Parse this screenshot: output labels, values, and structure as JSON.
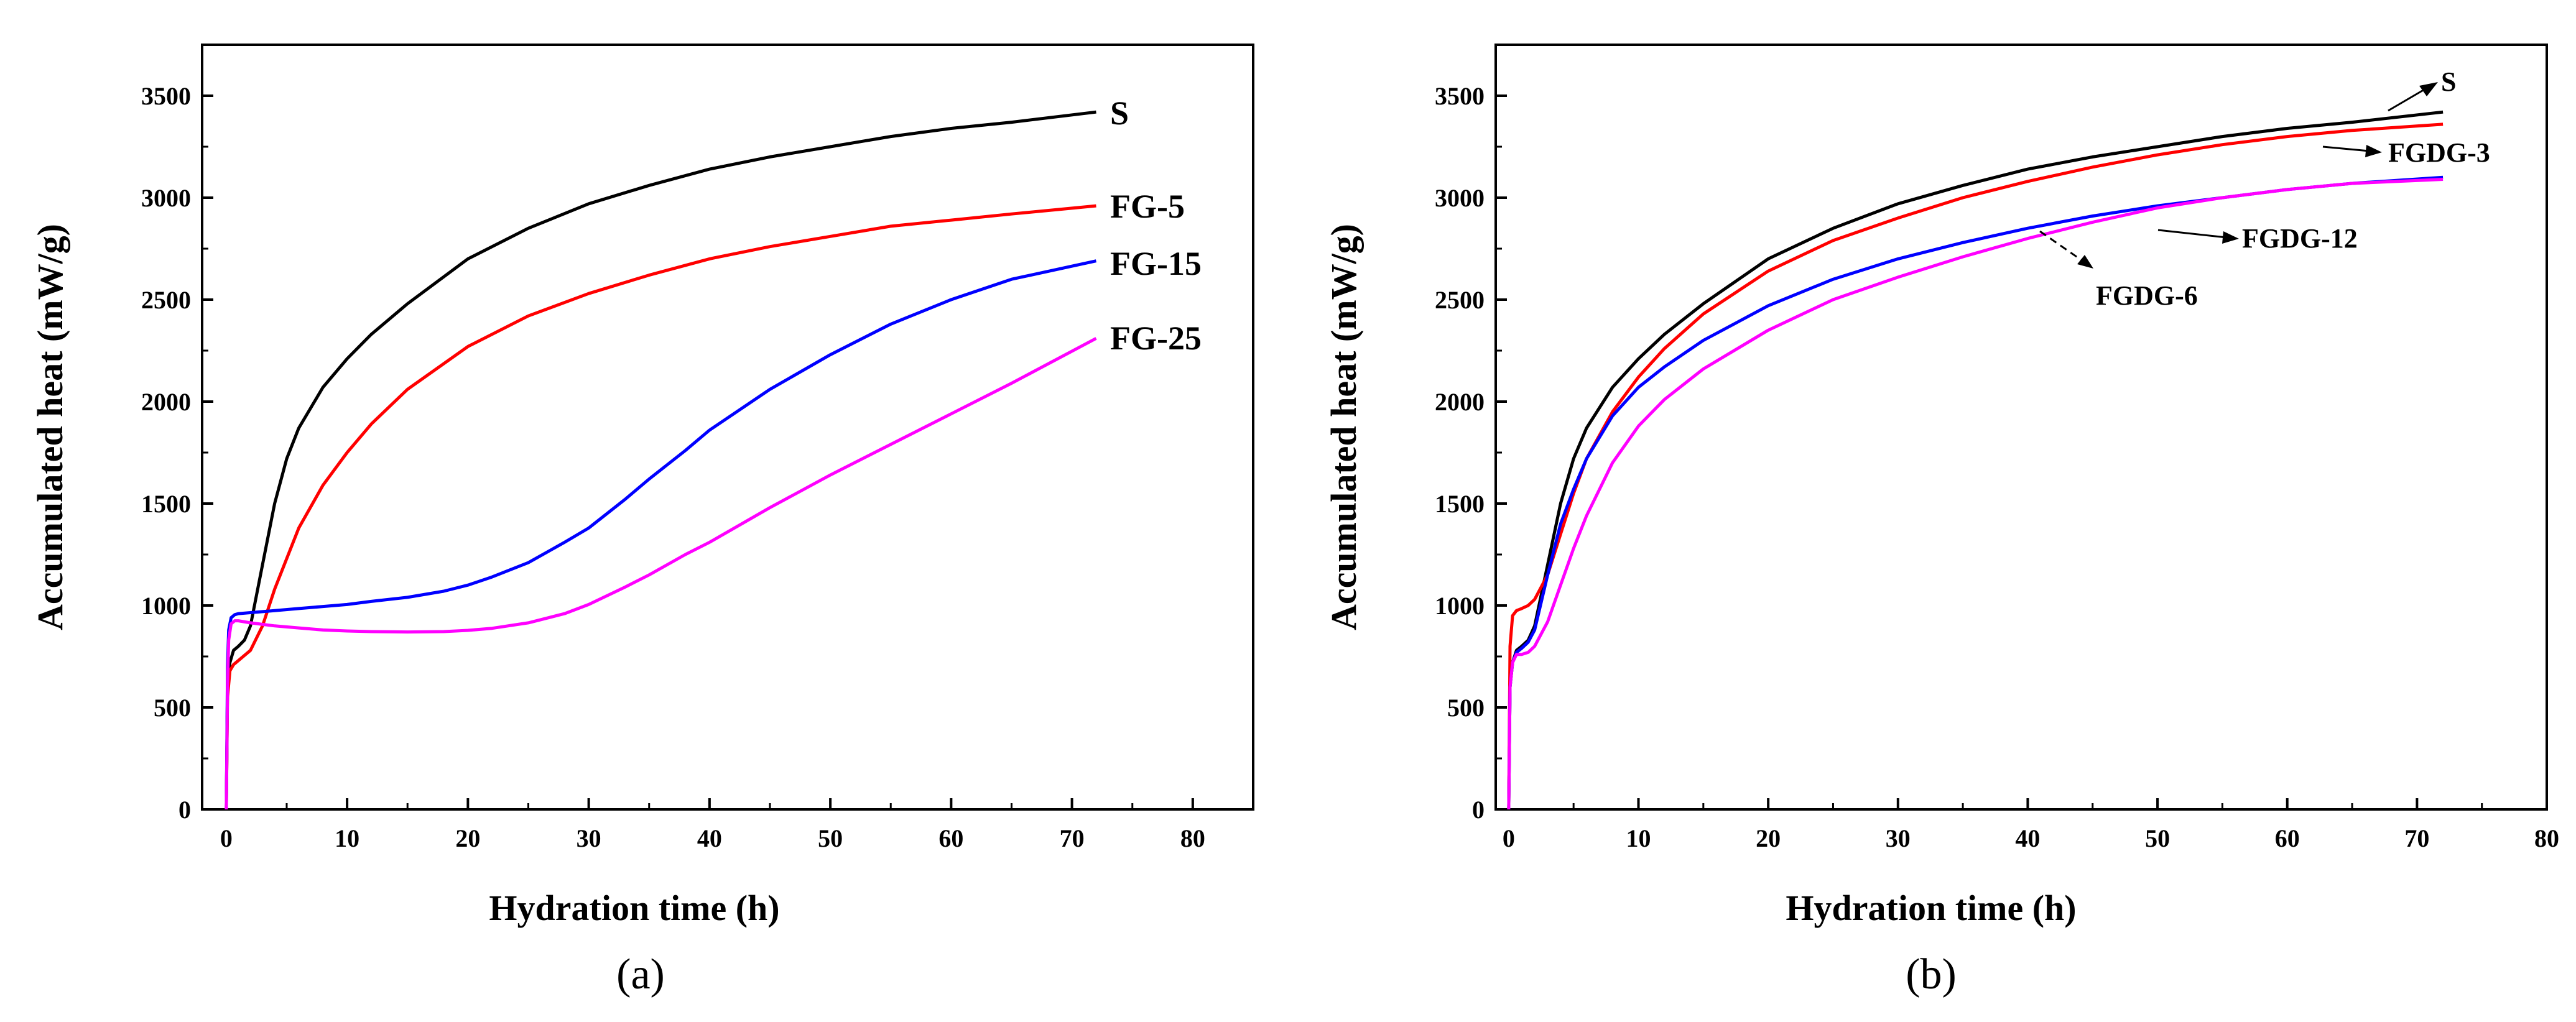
{
  "chart_data": [
    {
      "type": "line",
      "panel_label": "(a)",
      "xlabel": "Hydration time (h)",
      "ylabel": "Accumulated heat (mW/g)",
      "xlim": [
        -2,
        85
      ],
      "ylim": [
        0,
        3750
      ],
      "xticks": [
        "0",
        "10",
        "20",
        "30",
        "40",
        "50",
        "60",
        "70",
        "80"
      ],
      "yticks": [
        "0",
        "500",
        "1000",
        "1500",
        "2000",
        "2500",
        "3000",
        "3500"
      ],
      "series": [
        {
          "name": "S",
          "color": "#000000",
          "x": [
            0,
            0.1,
            0.3,
            0.6,
            1,
            1.5,
            2,
            3,
            4,
            5,
            6,
            8,
            10,
            12,
            15,
            20,
            25,
            30,
            35,
            40,
            45,
            50,
            55,
            60,
            65,
            72
          ],
          "y": [
            0,
            600,
            720,
            780,
            800,
            830,
            900,
            1200,
            1500,
            1720,
            1870,
            2070,
            2210,
            2330,
            2480,
            2700,
            2850,
            2970,
            3060,
            3140,
            3200,
            3250,
            3300,
            3340,
            3370,
            3420
          ]
        },
        {
          "name": "FG-5",
          "color": "#ff0000",
          "x": [
            0,
            0.1,
            0.3,
            0.6,
            1,
            2,
            3,
            4,
            5,
            6,
            8,
            10,
            12,
            15,
            20,
            25,
            30,
            35,
            40,
            45,
            50,
            55,
            60,
            65,
            72
          ],
          "y": [
            0,
            550,
            680,
            710,
            730,
            780,
            900,
            1080,
            1230,
            1380,
            1590,
            1750,
            1890,
            2060,
            2270,
            2420,
            2530,
            2620,
            2700,
            2760,
            2810,
            2860,
            2890,
            2920,
            2960
          ]
        },
        {
          "name": "FG-15",
          "color": "#0000ff",
          "x": [
            0,
            0.1,
            0.2,
            0.4,
            0.7,
            1,
            2,
            4,
            6,
            8,
            10,
            12,
            15,
            18,
            20,
            22,
            25,
            28,
            30,
            33,
            35,
            38,
            40,
            45,
            50,
            55,
            60,
            65,
            72
          ],
          "y": [
            0,
            700,
            880,
            940,
            955,
            960,
            965,
            975,
            985,
            995,
            1005,
            1020,
            1040,
            1070,
            1100,
            1140,
            1210,
            1310,
            1380,
            1520,
            1620,
            1760,
            1860,
            2060,
            2230,
            2380,
            2500,
            2600,
            2690
          ]
        },
        {
          "name": "FG-25",
          "color": "#ff00ff",
          "x": [
            0,
            0.1,
            0.2,
            0.4,
            0.7,
            1,
            2,
            4,
            6,
            8,
            10,
            12,
            15,
            18,
            20,
            22,
            25,
            28,
            30,
            33,
            35,
            38,
            40,
            45,
            50,
            55,
            60,
            65,
            72
          ],
          "y": [
            0,
            600,
            830,
            910,
            925,
            925,
            915,
            900,
            890,
            880,
            875,
            872,
            870,
            872,
            878,
            888,
            915,
            960,
            1005,
            1090,
            1150,
            1250,
            1310,
            1480,
            1640,
            1790,
            1940,
            2090,
            2310
          ]
        }
      ]
    },
    {
      "type": "line",
      "panel_label": "(b)",
      "xlabel": "Hydration time (h)",
      "ylabel": "Accumulated heat (mW/g)",
      "xlim": [
        -1,
        80
      ],
      "ylim": [
        0,
        3750
      ],
      "xticks": [
        "0",
        "10",
        "20",
        "30",
        "40",
        "50",
        "60",
        "70",
        "80"
      ],
      "yticks": [
        "0",
        "500",
        "1000",
        "1500",
        "2000",
        "2500",
        "3000",
        "3500"
      ],
      "series": [
        {
          "name": "S",
          "color": "#000000",
          "x": [
            0,
            0.1,
            0.3,
            0.6,
            1,
            1.5,
            2,
            3,
            4,
            5,
            6,
            8,
            10,
            12,
            15,
            20,
            25,
            30,
            35,
            40,
            45,
            50,
            55,
            60,
            65,
            72
          ],
          "y": [
            0,
            600,
            720,
            780,
            800,
            830,
            900,
            1200,
            1500,
            1720,
            1870,
            2070,
            2210,
            2330,
            2480,
            2700,
            2850,
            2970,
            3060,
            3140,
            3200,
            3250,
            3300,
            3340,
            3370,
            3420
          ]
        },
        {
          "name": "FGDG-3",
          "color": "#ff0000",
          "x": [
            0,
            0.1,
            0.3,
            0.6,
            1,
            1.5,
            2,
            3,
            4,
            5,
            6,
            8,
            10,
            12,
            15,
            20,
            25,
            30,
            35,
            40,
            45,
            50,
            55,
            60,
            65,
            72
          ],
          "y": [
            0,
            800,
            950,
            975,
            985,
            1000,
            1030,
            1150,
            1350,
            1550,
            1720,
            1950,
            2120,
            2260,
            2430,
            2640,
            2790,
            2900,
            3000,
            3080,
            3150,
            3210,
            3260,
            3300,
            3330,
            3360
          ]
        },
        {
          "name": "FGDG-12",
          "color": "#0000ff",
          "x": [
            0,
            0.1,
            0.3,
            0.6,
            1,
            1.5,
            2,
            3,
            4,
            5,
            6,
            8,
            10,
            12,
            15,
            20,
            25,
            30,
            35,
            40,
            45,
            50,
            55,
            60,
            65,
            72
          ],
          "y": [
            0,
            600,
            720,
            770,
            790,
            820,
            880,
            1150,
            1400,
            1570,
            1720,
            1930,
            2070,
            2170,
            2300,
            2470,
            2600,
            2700,
            2780,
            2850,
            2910,
            2960,
            3000,
            3040,
            3070,
            3100
          ]
        },
        {
          "name": "FGDG-6",
          "color": "#ff00ff",
          "x": [
            0,
            0.1,
            0.3,
            0.6,
            1,
            1.5,
            2,
            3,
            4,
            5,
            6,
            8,
            10,
            12,
            15,
            20,
            25,
            30,
            35,
            40,
            45,
            50,
            55,
            60,
            65,
            72
          ],
          "y": [
            0,
            600,
            720,
            760,
            760,
            770,
            800,
            920,
            1100,
            1280,
            1440,
            1700,
            1880,
            2010,
            2160,
            2350,
            2500,
            2610,
            2710,
            2800,
            2880,
            2950,
            3000,
            3040,
            3070,
            3090
          ]
        }
      ]
    }
  ]
}
